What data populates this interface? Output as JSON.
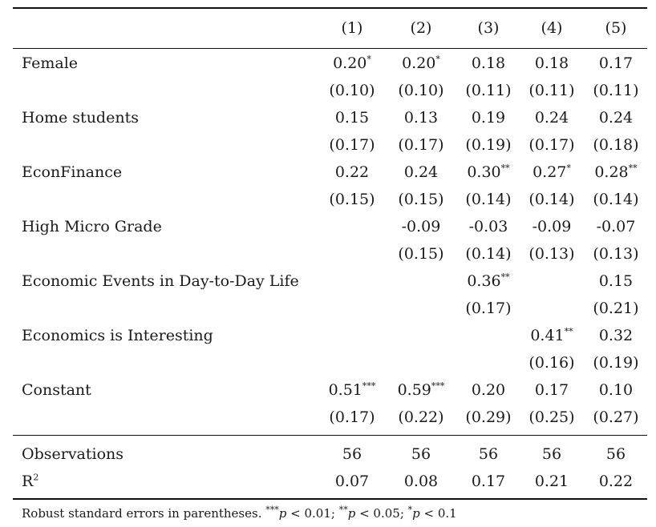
{
  "columns": [
    "(1)",
    "(2)",
    "(3)",
    "(4)",
    "(5)"
  ],
  "coef_rows": [
    {
      "label": "Female",
      "coef": [
        "0.20*",
        "0.20*",
        "0.18",
        "0.18",
        "0.17"
      ],
      "se": [
        "(0.10)",
        "(0.10)",
        "(0.11)",
        "(0.11)",
        "(0.11)"
      ]
    },
    {
      "label": "Home students",
      "coef": [
        "0.15",
        "0.13",
        "0.19",
        "0.24",
        "0.24"
      ],
      "se": [
        "(0.17)",
        "(0.17)",
        "(0.19)",
        "(0.17)",
        "(0.18)"
      ]
    },
    {
      "label": "EconFinance",
      "coef": [
        "0.22",
        "0.24",
        "0.30**",
        "0.27*",
        "0.28**"
      ],
      "se": [
        "(0.15)",
        "(0.15)",
        "(0.14)",
        "(0.14)",
        "(0.14)"
      ]
    },
    {
      "label": "High Micro Grade",
      "coef": [
        "",
        "-0.09",
        "-0.03",
        "-0.09",
        "-0.07"
      ],
      "se": [
        "",
        "(0.15)",
        "(0.14)",
        "(0.13)",
        "(0.13)"
      ]
    },
    {
      "label": "Economic Events in Day-to-Day Life",
      "coef": [
        "",
        "",
        "0.36**",
        "",
        "0.15"
      ],
      "se": [
        "",
        "",
        "(0.17)",
        "",
        "(0.21)"
      ]
    },
    {
      "label": "Economics is Interesting",
      "coef": [
        "",
        "",
        "",
        "0.41**",
        "0.32"
      ],
      "se": [
        "",
        "",
        "",
        "(0.16)",
        "(0.19)"
      ]
    },
    {
      "label": "Constant",
      "coef": [
        "0.51***",
        "0.59***",
        "0.20",
        "0.17",
        "0.10"
      ],
      "se": [
        "(0.17)",
        "(0.22)",
        "(0.29)",
        "(0.25)",
        "(0.27)"
      ]
    }
  ],
  "stats": {
    "observations": {
      "label": "Observations",
      "values": [
        "56",
        "56",
        "56",
        "56",
        "56"
      ]
    },
    "r2": {
      "label": "R",
      "superscript": "2",
      "values": [
        "0.07",
        "0.08",
        "0.17",
        "0.21",
        "0.22"
      ]
    }
  },
  "note": {
    "prefix": "Robust standard errors in parentheses.",
    "sig1_stars": "***",
    "sig1_var": "p",
    "sig1_cond": " < 0.01;",
    "sig2_stars": "**",
    "sig2_var": "p",
    "sig2_cond": " < 0.05;",
    "sig3_stars": "*",
    "sig3_var": "p",
    "sig3_cond": " < 0.1"
  }
}
